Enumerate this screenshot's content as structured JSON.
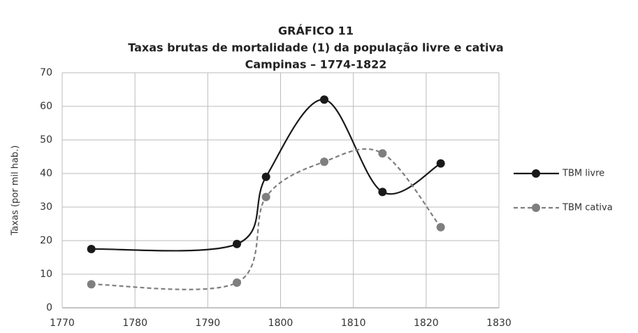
{
  "chart_data": {
    "type": "line",
    "title_lines": [
      "GRÁFICO 11",
      "Taxas brutas de mortalidade (1) da população livre e cativa",
      "Campinas – 1774-1822"
    ],
    "y_label": "Taxas (por mil hab.)",
    "x": [
      1774,
      1794,
      1798,
      1806,
      1814,
      1822
    ],
    "series": [
      {
        "name": "TBM livre",
        "color": "#1a1a1a",
        "dashed": false,
        "values": [
          17.5,
          19,
          39,
          62,
          34.5,
          43
        ]
      },
      {
        "name": "TBM cativa",
        "color": "#7f7f7f",
        "dashed": true,
        "values": [
          7,
          7.5,
          33,
          43.5,
          46,
          24
        ]
      }
    ],
    "xlim": [
      1770,
      1830
    ],
    "xticks": [
      1770,
      1780,
      1790,
      1800,
      1810,
      1820,
      1830
    ],
    "ylim": [
      0,
      70
    ],
    "yticks": [
      0,
      10,
      20,
      30,
      40,
      50,
      60,
      70
    ],
    "grid": true,
    "smooth": true,
    "legend": "right"
  }
}
